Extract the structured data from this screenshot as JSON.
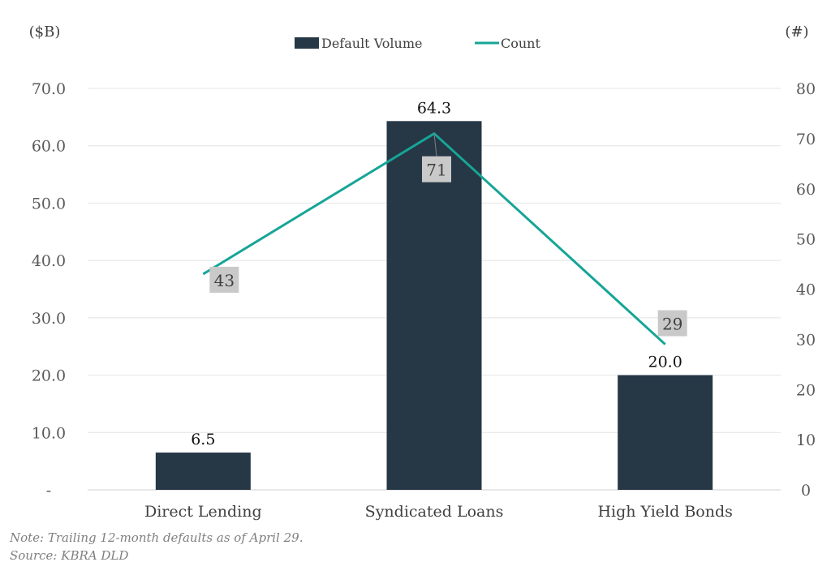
{
  "chart_data": {
    "type": "bar",
    "categories": [
      "Direct Lending",
      "Syndicated Loans",
      "High Yield Bonds"
    ],
    "series": [
      {
        "name": "Default Volume",
        "type": "bar",
        "axis": "left",
        "color": "#263746",
        "values": [
          6.5,
          64.3,
          20.0
        ],
        "labels": [
          "6.5",
          "64.3",
          "20.0"
        ]
      },
      {
        "name": "Count",
        "type": "line",
        "axis": "right",
        "color": "#16a597",
        "values": [
          43,
          71,
          29
        ],
        "labels": [
          "43",
          "71",
          "29"
        ]
      }
    ],
    "y_left": {
      "unit_label": "($B)",
      "min": 0,
      "max": 70,
      "step": 10,
      "tick_labels": [
        "-",
        "10.0",
        "20.0",
        "30.0",
        "40.0",
        "50.0",
        "60.0",
        "70.0"
      ]
    },
    "y_right": {
      "unit_label": "(#)",
      "min": 0,
      "max": 80,
      "step": 10,
      "tick_labels": [
        "0",
        "10",
        "20",
        "30",
        "40",
        "50",
        "60",
        "70",
        "80"
      ]
    },
    "grid": true,
    "legend_position": "top-center"
  },
  "footnote": {
    "note": "Note: Trailing 12-month defaults as of April 29.",
    "source": "Source: KBRA DLD"
  }
}
